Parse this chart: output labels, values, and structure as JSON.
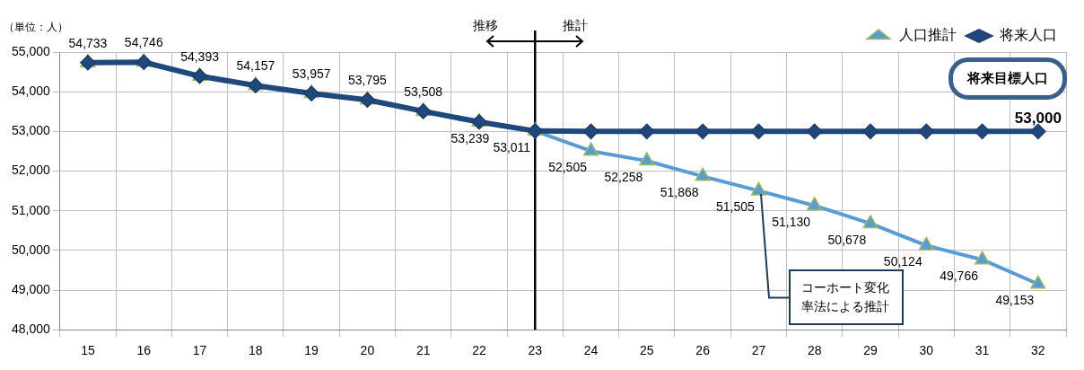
{
  "chart_data": {
    "type": "line",
    "ylabel": "（単位：人）",
    "categories": [
      "15",
      "16",
      "17",
      "18",
      "19",
      "20",
      "21",
      "22",
      "23",
      "24",
      "25",
      "26",
      "27",
      "28",
      "29",
      "30",
      "31",
      "32"
    ],
    "series": [
      {
        "name": "人口推計",
        "color": "#5b9bd5",
        "marker": "triangle",
        "values": [
          54733,
          54746,
          54393,
          54157,
          53957,
          53795,
          53508,
          53239,
          53011,
          52505,
          52258,
          51868,
          51505,
          51130,
          50678,
          50124,
          49766,
          49153
        ],
        "value_labels": [
          "54,733",
          "54,746",
          "54,393",
          "54,157",
          "53,957",
          "53,795",
          "53,508",
          "53,239",
          "53,011",
          "52,505",
          "52,258",
          "51,868",
          "51,505",
          "51,130",
          "50,678",
          "50,124",
          "49,766",
          "49,153"
        ]
      },
      {
        "name": "将来人口",
        "color": "#1f497d",
        "marker": "diamond",
        "values": [
          54733,
          54746,
          54393,
          54157,
          53957,
          53795,
          53508,
          53239,
          53011,
          53000,
          53000,
          53000,
          53000,
          53000,
          53000,
          53000,
          53000,
          53000
        ],
        "value_labels": [
          null,
          null,
          null,
          null,
          null,
          null,
          null,
          null,
          null,
          null,
          null,
          null,
          null,
          null,
          null,
          null,
          null,
          "53,000"
        ]
      }
    ],
    "ylim": [
      48000,
      55000
    ],
    "yticks": [
      {
        "value": 48000,
        "label": "48,000"
      },
      {
        "value": 49000,
        "label": "49,000"
      },
      {
        "value": 50000,
        "label": "50,000"
      },
      {
        "value": 51000,
        "label": "51,000"
      },
      {
        "value": 52000,
        "label": "52,000"
      },
      {
        "value": 53000,
        "label": "53,000"
      },
      {
        "value": 54000,
        "label": "54,000"
      },
      {
        "value": 55000,
        "label": "55,000"
      }
    ],
    "grid": true,
    "legend": "top right",
    "line_style": "solid",
    "ref_lines": [
      {
        "axis": "x",
        "value": "23",
        "color": "#000000"
      }
    ],
    "annotations": [
      "推移",
      "推計",
      "将来目標人口",
      {
        "text": "コーホート変化率法による推計",
        "x": "27",
        "y": 51505
      }
    ]
  }
}
